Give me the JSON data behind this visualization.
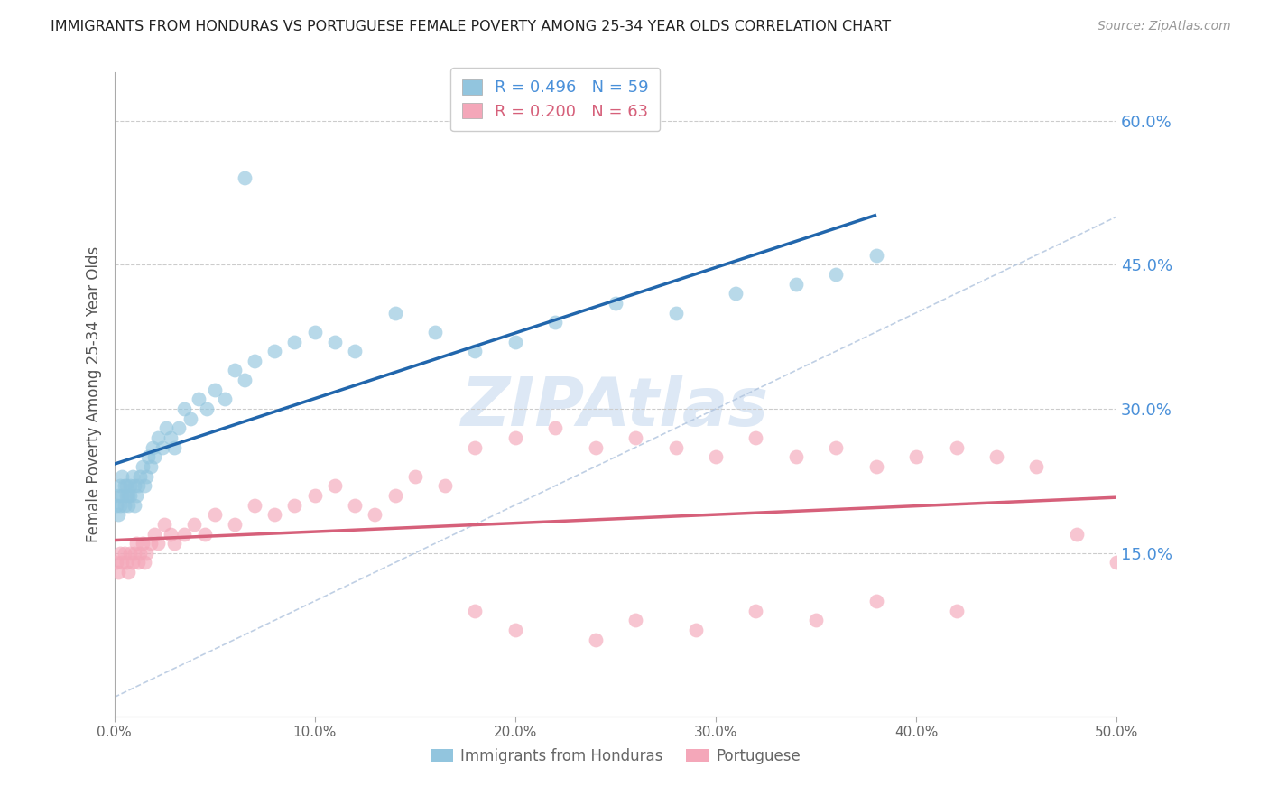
{
  "title": "IMMIGRANTS FROM HONDURAS VS PORTUGUESE FEMALE POVERTY AMONG 25-34 YEAR OLDS CORRELATION CHART",
  "source": "Source: ZipAtlas.com",
  "ylabel": "Female Poverty Among 25-34 Year Olds",
  "legend_label1": "Immigrants from Honduras",
  "legend_label2": "Portuguese",
  "R1": 0.496,
  "N1": 59,
  "R2": 0.2,
  "N2": 63,
  "xlim": [
    0,
    0.5
  ],
  "ylim": [
    -0.02,
    0.65
  ],
  "plot_ylim": [
    -0.02,
    0.65
  ],
  "xticks": [
    0.0,
    0.1,
    0.2,
    0.3,
    0.4,
    0.5
  ],
  "yticks_right": [
    0.15,
    0.3,
    0.45,
    0.6
  ],
  "color_blue": "#92c5de",
  "color_pink": "#f4a7b9",
  "color_line_blue": "#2166ac",
  "color_line_pink": "#d6607a",
  "color_text_blue": "#4a90d9",
  "color_diag": "#b0c4de",
  "background": "#ffffff",
  "blue_x": [
    0.001,
    0.002,
    0.002,
    0.003,
    0.003,
    0.004,
    0.004,
    0.005,
    0.005,
    0.006,
    0.006,
    0.007,
    0.007,
    0.008,
    0.008,
    0.009,
    0.01,
    0.01,
    0.011,
    0.012,
    0.013,
    0.014,
    0.015,
    0.016,
    0.017,
    0.018,
    0.019,
    0.02,
    0.022,
    0.024,
    0.026,
    0.028,
    0.03,
    0.032,
    0.035,
    0.038,
    0.042,
    0.046,
    0.05,
    0.055,
    0.06,
    0.065,
    0.07,
    0.08,
    0.09,
    0.1,
    0.11,
    0.12,
    0.14,
    0.16,
    0.18,
    0.2,
    0.22,
    0.25,
    0.28,
    0.31,
    0.34,
    0.36,
    0.38
  ],
  "blue_y": [
    0.2,
    0.21,
    0.19,
    0.22,
    0.2,
    0.21,
    0.23,
    0.22,
    0.2,
    0.21,
    0.22,
    0.2,
    0.21,
    0.22,
    0.21,
    0.23,
    0.22,
    0.2,
    0.21,
    0.22,
    0.23,
    0.24,
    0.22,
    0.23,
    0.25,
    0.24,
    0.26,
    0.25,
    0.27,
    0.26,
    0.28,
    0.27,
    0.26,
    0.28,
    0.3,
    0.29,
    0.31,
    0.3,
    0.32,
    0.31,
    0.34,
    0.33,
    0.35,
    0.36,
    0.37,
    0.38,
    0.37,
    0.36,
    0.4,
    0.38,
    0.36,
    0.37,
    0.39,
    0.41,
    0.4,
    0.42,
    0.43,
    0.44,
    0.46
  ],
  "blue_outlier_x": [
    0.065
  ],
  "blue_outlier_y": [
    0.54
  ],
  "pink_x": [
    0.001,
    0.002,
    0.003,
    0.004,
    0.005,
    0.006,
    0.007,
    0.008,
    0.009,
    0.01,
    0.011,
    0.012,
    0.013,
    0.014,
    0.015,
    0.016,
    0.018,
    0.02,
    0.022,
    0.025,
    0.028,
    0.03,
    0.035,
    0.04,
    0.045,
    0.05,
    0.06,
    0.07,
    0.08,
    0.09,
    0.1,
    0.11,
    0.12,
    0.13,
    0.14,
    0.15,
    0.165,
    0.18,
    0.2,
    0.22,
    0.24,
    0.26,
    0.28,
    0.3,
    0.32,
    0.34,
    0.36,
    0.38,
    0.4,
    0.42,
    0.44,
    0.46,
    0.48,
    0.5,
    0.18,
    0.2,
    0.24,
    0.26,
    0.29,
    0.32,
    0.35,
    0.38,
    0.42
  ],
  "pink_y": [
    0.14,
    0.13,
    0.15,
    0.14,
    0.15,
    0.14,
    0.13,
    0.15,
    0.14,
    0.15,
    0.16,
    0.14,
    0.15,
    0.16,
    0.14,
    0.15,
    0.16,
    0.17,
    0.16,
    0.18,
    0.17,
    0.16,
    0.17,
    0.18,
    0.17,
    0.19,
    0.18,
    0.2,
    0.19,
    0.2,
    0.21,
    0.22,
    0.2,
    0.19,
    0.21,
    0.23,
    0.22,
    0.26,
    0.27,
    0.28,
    0.26,
    0.27,
    0.26,
    0.25,
    0.27,
    0.25,
    0.26,
    0.24,
    0.25,
    0.26,
    0.25,
    0.24,
    0.17,
    0.14,
    0.09,
    0.07,
    0.06,
    0.08,
    0.07,
    0.09,
    0.08,
    0.1,
    0.09
  ]
}
